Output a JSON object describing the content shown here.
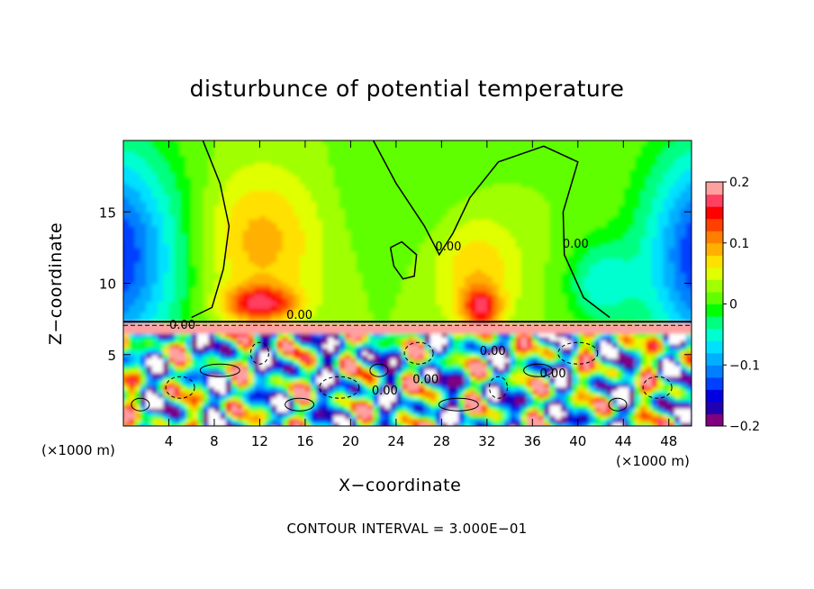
{
  "chart_data": {
    "type": "heatmap",
    "title": "disturbunce of potential temperature",
    "xlabel": "X−coordinate",
    "ylabel": "Z−coordinate",
    "x_unit_label": "(×1000 m)",
    "x_unit_label_right": "(×1000 m)",
    "footnote": "CONTOUR INTERVAL = 3.000E−01",
    "xlim": [
      0,
      50
    ],
    "ylim": [
      0,
      20
    ],
    "xticks": [
      4,
      8,
      12,
      16,
      20,
      24,
      28,
      32,
      36,
      40,
      44,
      48
    ],
    "xtick_labels": [
      "4",
      "8",
      "12",
      "16",
      "20",
      "24",
      "28",
      "32",
      "36",
      "40",
      "44",
      "48"
    ],
    "yticks": [
      5,
      10,
      15
    ],
    "ytick_labels": [
      "5",
      "10",
      "15"
    ],
    "colorbar": {
      "range": [
        -0.2,
        0.2
      ],
      "ticks": [
        0.2,
        0.1,
        0,
        -0.1,
        -0.2
      ],
      "tick_labels": [
        "0.2",
        "0.1",
        "0",
        "−0.1",
        "−0.2"
      ],
      "colors": [
        "#800080",
        "#2000b0",
        "#0000e0",
        "#0040ff",
        "#0080ff",
        "#00b0ff",
        "#00e0ff",
        "#00ffd0",
        "#00ff80",
        "#00ff00",
        "#60ff00",
        "#a0ff00",
        "#e0ff00",
        "#ffe000",
        "#ffb000",
        "#ff8000",
        "#ff4000",
        "#ff0000",
        "#ff4060",
        "#ffa0a0"
      ]
    },
    "contour_labels": [
      {
        "text": "0.00",
        "x": 15.5,
        "z": 7.5
      },
      {
        "text": "0.00",
        "x": 5.2,
        "z": 6.8
      },
      {
        "text": "0.00",
        "x": 28.6,
        "z": 12.3
      },
      {
        "text": "0.00",
        "x": 39.8,
        "z": 12.5
      },
      {
        "text": "0.00",
        "x": 23.0,
        "z": 2.2
      },
      {
        "text": "0.00",
        "x": 26.6,
        "z": 3.0
      },
      {
        "text": "0.00",
        "x": 32.5,
        "z": 5.0
      },
      {
        "text": "0.00",
        "x": 37.8,
        "z": 3.4
      }
    ]
  }
}
